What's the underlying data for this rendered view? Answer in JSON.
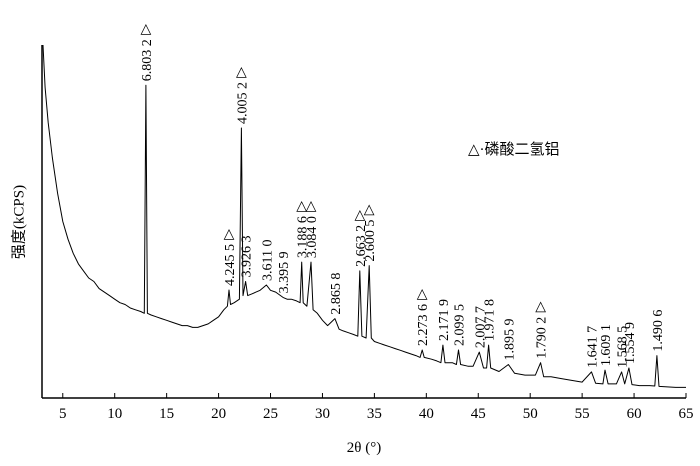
{
  "chart_data": {
    "type": "line",
    "xlabel": "2θ (°)",
    "ylabel": "强度(kCPS)",
    "legend": "△·磷酸二氢铝",
    "color": "#000000",
    "xlim": [
      3,
      65
    ],
    "ylim": [
      0,
      100
    ],
    "xticks": [
      5,
      10,
      15,
      20,
      25,
      30,
      35,
      40,
      45,
      50,
      55,
      60,
      65
    ],
    "x": [
      3.1,
      3.3,
      3.6,
      4.0,
      4.5,
      5.0,
      5.5,
      6.0,
      6.5,
      7.0,
      7.5,
      8.0,
      8.5,
      9.0,
      9.5,
      10.0,
      10.5,
      11.0,
      11.5,
      12.0,
      12.5,
      12.85,
      13.0,
      13.15,
      13.5,
      14.0,
      14.5,
      15.0,
      15.5,
      16.0,
      16.5,
      17.0,
      17.5,
      18.0,
      18.5,
      19.0,
      19.5,
      20.0,
      20.5,
      20.85,
      21.0,
      21.15,
      21.5,
      22.0,
      22.2,
      22.35,
      22.6,
      22.8,
      23.2,
      23.6,
      24.0,
      24.6,
      25.0,
      25.5,
      26.2,
      26.6,
      27.0,
      27.5,
      27.85,
      28.0,
      28.15,
      28.5,
      28.9,
      29.1,
      29.5,
      30.0,
      30.5,
      31.2,
      31.6,
      32.0,
      32.5,
      33.0,
      33.4,
      33.6,
      33.8,
      34.2,
      34.5,
      34.7,
      35.0,
      35.5,
      36.0,
      36.5,
      37.0,
      37.5,
      38.0,
      38.5,
      39.0,
      39.4,
      39.6,
      39.8,
      40.5,
      41.0,
      41.4,
      41.6,
      41.8,
      42.5,
      42.9,
      43.1,
      43.3,
      44.0,
      44.5,
      45.1,
      45.5,
      45.8,
      46.0,
      46.2,
      47.0,
      47.9,
      48.5,
      49.5,
      50.5,
      51.0,
      51.3,
      52.0,
      53.0,
      54.0,
      55.0,
      55.9,
      56.3,
      57.0,
      57.2,
      57.5,
      58.3,
      58.8,
      59.1,
      59.5,
      59.8,
      60.5,
      61.5,
      62.0,
      62.2,
      62.4,
      63.0,
      64.0,
      65.0
    ],
    "values": [
      100,
      88,
      78,
      68,
      58,
      50,
      45,
      41,
      38,
      36,
      34,
      33,
      31,
      30,
      29,
      28,
      27,
      26.5,
      25.5,
      25,
      24.5,
      24,
      88.6,
      24,
      23.5,
      23,
      22.5,
      22,
      21.5,
      21,
      20.5,
      20.5,
      20,
      20,
      20.5,
      21,
      22,
      23,
      25,
      26,
      30.6,
      26.5,
      27,
      28,
      76.5,
      29,
      33,
      29,
      29.5,
      30,
      30.5,
      32,
      30.5,
      30,
      28.5,
      28,
      28,
      27.5,
      27,
      38.5,
      27,
      26,
      38.5,
      25,
      24,
      22,
      20.5,
      22.5,
      19.5,
      19,
      18.5,
      18,
      17.5,
      36,
      17.5,
      17,
      37.5,
      17,
      16,
      15.5,
      15,
      14.5,
      14,
      13.5,
      13,
      12.5,
      12,
      11.5,
      13.6,
      11.5,
      11,
      10.5,
      10,
      15,
      10,
      10,
      9.5,
      13.6,
      9.5,
      9,
      9,
      13,
      8.5,
      8.5,
      15,
      8.5,
      7.5,
      9.5,
      7,
      6.5,
      6.5,
      10,
      6,
      6,
      5.5,
      5,
      4.5,
      7.4,
      4.2,
      4,
      7.9,
      4,
      4,
      7.4,
      4,
      8.5,
      3.8,
      3.5,
      3.5,
      3.4,
      12,
      3.3,
      3.2,
      3,
      3
    ],
    "annotations": [
      {
        "label": "6.803 2",
        "x": 13.0,
        "marker": "△"
      },
      {
        "label": "4.245 5",
        "x": 21.0,
        "marker": "△"
      },
      {
        "label": "4.005 2",
        "x": 22.2,
        "marker": "△"
      },
      {
        "label": "3.926 3",
        "x": 22.6
      },
      {
        "label": "3.611 0",
        "x": 24.6
      },
      {
        "label": "3.395 9",
        "x": 26.2
      },
      {
        "label": "3.188 6",
        "x": 28.0,
        "marker": "△"
      },
      {
        "label": "3.084 0",
        "x": 28.9,
        "marker": "△"
      },
      {
        "label": "2.865 8",
        "x": 31.2
      },
      {
        "label": "2.663 2",
        "x": 33.6,
        "marker": "△"
      },
      {
        "label": "2.600 5",
        "x": 34.5,
        "marker": "△"
      },
      {
        "label": "2.273 6",
        "x": 39.6,
        "marker": "△"
      },
      {
        "label": "2.171 9",
        "x": 41.6
      },
      {
        "label": "2.099 5",
        "x": 43.1
      },
      {
        "label": "2.007 7",
        "x": 45.1
      },
      {
        "label": "1.971 8",
        "x": 46.0
      },
      {
        "label": "1.895 9",
        "x": 47.9
      },
      {
        "label": "1.790 2",
        "x": 51.0,
        "marker": "△"
      },
      {
        "label": "1.641 7",
        "x": 55.9
      },
      {
        "label": "1.609 1",
        "x": 57.2
      },
      {
        "label": "1.568 5",
        "x": 58.8
      },
      {
        "label": "1.554 9",
        "x": 59.5
      },
      {
        "label": "1.490 6",
        "x": 62.2
      }
    ]
  }
}
